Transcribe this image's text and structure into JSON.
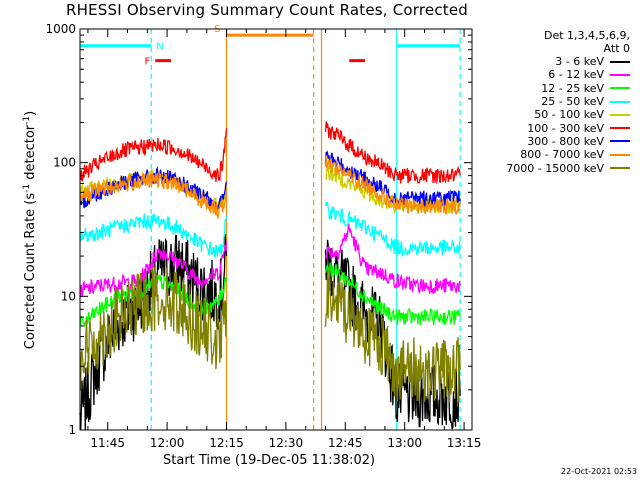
{
  "title": "RHESSI Observing Summary Count Rates, Corrected",
  "xlabel": "Start Time (19-Dec-05 11:38:02)",
  "ylabel_main": "Corrected Count Rate (s",
  "ylabel_sup1": "-1",
  "ylabel_mid": " detector",
  "ylabel_sup2": "-1",
  "ylabel_end": ")",
  "timestamp": "22-Oct-2021 02:53",
  "legend": {
    "header1": "Det 1,3,4,5,6,9,",
    "header2": "Att 0",
    "entries": [
      {
        "label": "3 - 6 keV",
        "color": "#000000"
      },
      {
        "label": "6 - 12 keV",
        "color": "#ff00ff"
      },
      {
        "label": "12 - 25 keV",
        "color": "#00ff00"
      },
      {
        "label": "25 - 50 keV",
        "color": "#00ffff"
      },
      {
        "label": "50 - 100 keV",
        "color": "#cccc00"
      },
      {
        "label": "100 - 300 keV",
        "color": "#ff0000"
      },
      {
        "label": "300 - 800 keV",
        "color": "#0000ff"
      },
      {
        "label": "800 - 7000 keV",
        "color": "#ff8800"
      },
      {
        "label": "7000 - 15000 keV",
        "color": "#808000"
      }
    ]
  },
  "flag_labels": {
    "N": "N",
    "F": "F",
    "S": "S"
  },
  "chart_data": {
    "type": "line",
    "title": "RHESSI Observing Summary Count Rates, Corrected",
    "xlabel": "Start Time (19-Dec-05 11:38:02)",
    "ylabel": "Corrected Count Rate (s-1 detector-1)",
    "y_scale": "log",
    "ylim": [
      1,
      1000
    ],
    "xlim": [
      "11:38",
      "13:17"
    ],
    "x_ticks": [
      "11:45",
      "12:00",
      "12:15",
      "12:30",
      "12:45",
      "13:00",
      "13:15"
    ],
    "y_ticks": [
      1,
      10,
      100,
      1000
    ],
    "grid": false,
    "legend_position": "right",
    "data_gaps": [
      [
        "12:15",
        "12:39"
      ]
    ],
    "vertical_markers": [
      {
        "time": "11:56",
        "color": "#00ffff",
        "style": "dashed"
      },
      {
        "time": "12:15",
        "color": "#ff8800",
        "style": "solid"
      },
      {
        "time": "12:37",
        "color": "#ff8800",
        "style": "dashed"
      },
      {
        "time": "12:39",
        "color": "#ff8800",
        "style": "solid"
      },
      {
        "time": "12:58",
        "color": "#00ffff",
        "style": "solid"
      },
      {
        "time": "13:14",
        "color": "#00ffff",
        "style": "dashed"
      }
    ],
    "flag_bars": [
      {
        "label": "N",
        "color": "#00ffff",
        "x": [
          "11:38",
          "11:56"
        ],
        "y": 750
      },
      {
        "label": "N",
        "color": "#00ffff",
        "x": [
          "12:58",
          "13:14"
        ],
        "y": 750
      },
      {
        "label": "F",
        "color": "#ff0000",
        "x": [
          "11:57",
          "12:01"
        ],
        "y": 580
      },
      {
        "label": "F",
        "color": "#ff0000",
        "x": [
          "12:46",
          "12:50"
        ],
        "y": 580
      },
      {
        "label": "S",
        "color": "#ff8800",
        "x": [
          "12:15",
          "12:37"
        ],
        "y": 900
      }
    ],
    "x": [
      "11:38",
      "11:43",
      "11:48",
      "11:53",
      "11:58",
      "12:03",
      "12:08",
      "12:13",
      "12:14",
      "12:15",
      "12:39",
      "12:40",
      "12:43",
      "12:46",
      "12:50",
      "12:54",
      "12:58",
      "13:03",
      "13:08",
      "13:14"
    ],
    "series": [
      {
        "name": "3 - 6 keV",
        "color": "#000000",
        "values": [
          1.2,
          3.5,
          6.5,
          9,
          16,
          18,
          12,
          10,
          12,
          20,
          null,
          20,
          14,
          11,
          7.5,
          6,
          1.8,
          1.8,
          1.8,
          1.8
        ]
      },
      {
        "name": "6 - 12 keV",
        "color": "#ff00ff",
        "values": [
          11,
          12,
          12.5,
          13,
          22,
          18,
          13,
          15,
          19,
          26,
          null,
          22,
          21,
          32,
          16,
          15,
          13,
          12,
          12,
          12
        ]
      },
      {
        "name": "12 - 25 keV",
        "color": "#00ff00",
        "values": [
          6,
          8,
          10,
          11,
          13,
          11,
          8,
          9,
          11,
          14,
          null,
          17,
          15,
          13,
          10,
          8,
          7,
          7,
          7,
          7
        ]
      },
      {
        "name": "25 - 50 keV",
        "color": "#00ffff",
        "values": [
          28,
          30,
          33,
          36,
          37,
          32,
          25,
          21,
          24,
          40,
          null,
          45,
          41,
          37,
          33,
          28,
          23,
          23,
          23,
          23
        ]
      },
      {
        "name": "50 - 100 keV",
        "color": "#cccc00",
        "values": [
          60,
          66,
          72,
          76,
          78,
          70,
          56,
          48,
          52,
          65,
          null,
          85,
          80,
          70,
          60,
          52,
          48,
          48,
          48,
          48
        ]
      },
      {
        "name": "100 - 300 keV",
        "color": "#ff0000",
        "values": [
          80,
          100,
          120,
          130,
          136,
          125,
          100,
          80,
          95,
          180,
          null,
          180,
          160,
          135,
          110,
          95,
          80,
          80,
          80,
          80
        ]
      },
      {
        "name": "300 - 800 keV",
        "color": "#0000ff",
        "values": [
          50,
          60,
          70,
          76,
          80,
          72,
          58,
          48,
          52,
          72,
          null,
          110,
          100,
          88,
          75,
          64,
          55,
          54,
          54,
          54
        ]
      },
      {
        "name": "800 - 7000 keV",
        "color": "#ff8800",
        "values": [
          57,
          63,
          68,
          72,
          74,
          68,
          54,
          44,
          48,
          60,
          null,
          100,
          92,
          80,
          68,
          58,
          48,
          47,
          47,
          47
        ]
      },
      {
        "name": "7000 - 15000 keV",
        "color": "#808000",
        "values": [
          3.5,
          5,
          7,
          8.5,
          10,
          9,
          6,
          4.5,
          5,
          9,
          null,
          10,
          9,
          7.5,
          5.5,
          4.5,
          2.8,
          2.8,
          2.8,
          2.8
        ]
      }
    ]
  }
}
